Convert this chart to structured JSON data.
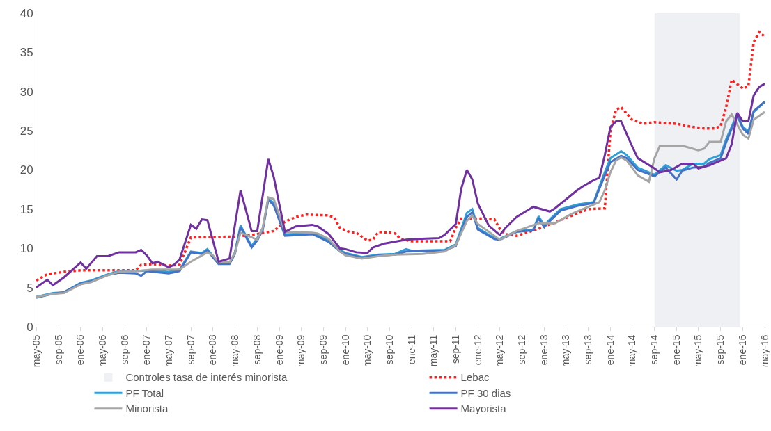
{
  "chart_data": {
    "type": "line",
    "xlim": [
      "2005-05",
      "2016-05"
    ],
    "ylim": [
      0,
      40
    ],
    "yticks": [
      0,
      5,
      10,
      15,
      20,
      25,
      30,
      35,
      40
    ],
    "grid": false,
    "legend": "bottom",
    "marker": "none",
    "xticks": [
      {
        "value": "2005-05",
        "label": "may-05"
      },
      {
        "value": "2005-09",
        "label": "sep-05"
      },
      {
        "value": "2006-01",
        "label": "ene-06"
      },
      {
        "value": "2006-05",
        "label": "may-06"
      },
      {
        "value": "2006-09",
        "label": "sep-06"
      },
      {
        "value": "2007-01",
        "label": "ene-07"
      },
      {
        "value": "2007-05",
        "label": "may-07"
      },
      {
        "value": "2007-09",
        "label": "sep-07"
      },
      {
        "value": "2008-01",
        "label": "ene-08"
      },
      {
        "value": "2008-05",
        "label": "may-08"
      },
      {
        "value": "2008-09",
        "label": "sep-08"
      },
      {
        "value": "2009-01",
        "label": "ene-09"
      },
      {
        "value": "2009-05",
        "label": "may-09"
      },
      {
        "value": "2009-09",
        "label": "sep-09"
      },
      {
        "value": "2010-01",
        "label": "ene-10"
      },
      {
        "value": "2010-05",
        "label": "may-10"
      },
      {
        "value": "2010-09",
        "label": "sep-10"
      },
      {
        "value": "2011-01",
        "label": "ene-11"
      },
      {
        "value": "2011-05",
        "label": "may-11"
      },
      {
        "value": "2011-09",
        "label": "sep-11"
      },
      {
        "value": "2012-01",
        "label": "ene-12"
      },
      {
        "value": "2012-05",
        "label": "may-12"
      },
      {
        "value": "2012-09",
        "label": "sep-12"
      },
      {
        "value": "2013-01",
        "label": "ene-13"
      },
      {
        "value": "2013-05",
        "label": "may-13"
      },
      {
        "value": "2013-09",
        "label": "sep-13"
      },
      {
        "value": "2014-01",
        "label": "ene-14"
      },
      {
        "value": "2014-05",
        "label": "may-14"
      },
      {
        "value": "2014-09",
        "label": "sep-14"
      },
      {
        "value": "2015-01",
        "label": "ene-15"
      },
      {
        "value": "2015-05",
        "label": "may-15"
      },
      {
        "value": "2015-09",
        "label": "sep-15"
      },
      {
        "value": "2016-01",
        "label": "ene-16"
      },
      {
        "value": "2016-05",
        "label": "may-16"
      }
    ],
    "bands": [
      {
        "axis": "x",
        "from": "2014-09",
        "to": "2015-12-15",
        "label": "Controles tasa de interés minorista",
        "color": "#eef0f3"
      }
    ],
    "series": [
      {
        "name": "Lebac",
        "color": "#ff2020",
        "line_style": "dotted",
        "x": [
          "2005-05",
          "2005-07",
          "2005-10",
          "2006-01",
          "2006-05",
          "2006-11",
          "2006-12",
          "2007-02",
          "2007-05",
          "2007-07",
          "2007-09",
          "2008-05",
          "2008-08",
          "2008-12",
          "2009-02",
          "2009-04",
          "2009-06",
          "2009-10",
          "2009-11",
          "2009-12",
          "2010-02",
          "2010-03",
          "2010-05",
          "2010-06",
          "2010-07",
          "2010-09",
          "2010-10",
          "2010-11",
          "2011-01",
          "2011-08",
          "2011-09",
          "2011-10",
          "2012-02",
          "2012-04",
          "2012-05",
          "2012-06",
          "2012-08",
          "2012-12",
          "2013-09",
          "2013-12",
          "2014-01",
          "2014-02",
          "2014-03",
          "2014-05",
          "2014-07",
          "2014-09",
          "2015-01",
          "2015-03",
          "2015-06",
          "2015-08",
          "2015-09",
          "2015-10",
          "2015-11",
          "2016-01",
          "2016-02",
          "2016-03",
          "2016-04",
          "2016-05"
        ],
        "values": [
          5.9,
          6.7,
          7.0,
          7.2,
          7.2,
          7.2,
          7.9,
          8.0,
          7.8,
          7.9,
          11.4,
          11.5,
          11.7,
          12.2,
          13.4,
          14.0,
          14.3,
          14.2,
          13.9,
          12.6,
          12.0,
          12.0,
          11.0,
          11.1,
          12.1,
          12.0,
          11.9,
          11.2,
          10.9,
          10.9,
          12.6,
          13.8,
          13.8,
          13.7,
          12.5,
          11.8,
          11.6,
          12.5,
          15.0,
          15.1,
          25.0,
          27.7,
          28.0,
          26.4,
          25.9,
          26.1,
          25.9,
          25.6,
          25.3,
          25.3,
          25.6,
          28.0,
          31.5,
          30.4,
          30.7,
          36.3,
          37.6,
          37.0
        ]
      },
      {
        "name": "PF Total",
        "color": "#2e9fd9",
        "x": [
          "2005-05",
          "2005-08",
          "2005-10",
          "2006-01",
          "2006-03",
          "2006-06",
          "2006-08",
          "2006-11",
          "2007-02",
          "2007-05",
          "2007-07",
          "2007-09",
          "2007-11",
          "2007-12",
          "2008-02",
          "2008-04",
          "2008-05",
          "2008-06",
          "2008-08",
          "2008-09",
          "2008-10",
          "2008-11",
          "2008-12",
          "2009-02",
          "2009-07",
          "2009-08",
          "2009-10",
          "2009-12",
          "2010-01",
          "2010-04",
          "2010-07",
          "2010-10",
          "2010-12",
          "2011-01",
          "2011-07",
          "2011-09",
          "2011-11",
          "2011-12",
          "2012-01",
          "2012-04",
          "2012-05",
          "2012-08",
          "2012-11",
          "2012-12",
          "2013-01",
          "2013-02",
          "2013-04",
          "2013-07",
          "2013-10",
          "2013-11",
          "2013-12",
          "2014-01",
          "2014-03",
          "2014-04",
          "2014-06",
          "2014-09",
          "2014-11",
          "2015-01",
          "2015-02",
          "2015-04",
          "2015-06",
          "2015-07",
          "2015-09",
          "2015-10",
          "2015-12",
          "2016-01",
          "2016-02",
          "2016-03",
          "2016-05"
        ],
        "values": [
          3.8,
          4.3,
          4.4,
          5.6,
          5.9,
          6.7,
          7.1,
          7.1,
          7.2,
          7.0,
          7.3,
          9.6,
          9.4,
          9.9,
          8.1,
          8.1,
          9.5,
          12.9,
          10.3,
          11.3,
          12.5,
          16.3,
          15.8,
          11.8,
          11.9,
          11.7,
          11.0,
          9.8,
          9.4,
          8.9,
          9.2,
          9.3,
          9.9,
          9.7,
          9.8,
          10.5,
          14.5,
          15.0,
          12.6,
          11.3,
          11.2,
          12.2,
          12.4,
          14.1,
          12.9,
          13.7,
          15.0,
          15.6,
          15.9,
          17.9,
          19.7,
          21.5,
          22.4,
          21.9,
          20.3,
          19.4,
          20.6,
          19.9,
          20.0,
          20.8,
          20.8,
          21.4,
          21.9,
          23.9,
          27.1,
          25.5,
          24.9,
          27.4,
          28.7
        ]
      },
      {
        "name": "PF 30 dias",
        "color": "#4472c4",
        "x": [
          "2005-05",
          "2005-08",
          "2005-10",
          "2006-01",
          "2006-03",
          "2006-06",
          "2006-08",
          "2006-11",
          "2006-12",
          "2007-01",
          "2007-05",
          "2007-07",
          "2007-09",
          "2007-11",
          "2007-12",
          "2008-02",
          "2008-04",
          "2008-05",
          "2008-06",
          "2008-08",
          "2008-09",
          "2008-10",
          "2008-11",
          "2008-12",
          "2009-02",
          "2009-07",
          "2009-08",
          "2009-10",
          "2009-12",
          "2010-01",
          "2010-04",
          "2010-07",
          "2010-10",
          "2010-12",
          "2011-07",
          "2011-09",
          "2011-11",
          "2011-12",
          "2012-01",
          "2012-04",
          "2012-05",
          "2012-08",
          "2012-11",
          "2012-12",
          "2013-01",
          "2013-02",
          "2013-04",
          "2013-07",
          "2013-10",
          "2013-11",
          "2013-12",
          "2014-01",
          "2014-03",
          "2014-04",
          "2014-06",
          "2014-09",
          "2014-11",
          "2015-01",
          "2015-02",
          "2015-04",
          "2015-06",
          "2015-07",
          "2015-09",
          "2015-10",
          "2015-12",
          "2016-01",
          "2016-02",
          "2016-03",
          "2016-05"
        ],
        "values": [
          3.7,
          4.2,
          4.4,
          5.5,
          5.8,
          6.6,
          6.9,
          6.8,
          6.5,
          7.1,
          6.8,
          7.1,
          9.5,
          9.3,
          9.7,
          8.0,
          8.0,
          9.3,
          12.7,
          10.1,
          11.0,
          12.3,
          16.2,
          15.5,
          11.6,
          11.8,
          11.5,
          10.8,
          9.6,
          9.3,
          8.8,
          9.1,
          9.2,
          9.6,
          9.7,
          10.3,
          14.0,
          14.6,
          12.4,
          11.2,
          11.1,
          12.1,
          12.3,
          13.8,
          12.7,
          13.5,
          14.8,
          15.4,
          15.8,
          17.6,
          19.3,
          21.0,
          21.8,
          21.5,
          20.0,
          19.2,
          20.3,
          18.8,
          19.9,
          20.3,
          20.4,
          20.9,
          21.5,
          23.5,
          27.0,
          25.3,
          24.6,
          27.5,
          28.7
        ]
      },
      {
        "name": "Minorista",
        "color": "#a5a5a5",
        "x": [
          "2005-05",
          "2005-08",
          "2005-10",
          "2006-01",
          "2006-03",
          "2006-06",
          "2006-08",
          "2006-11",
          "2007-02",
          "2007-07",
          "2007-09",
          "2007-12",
          "2008-01",
          "2008-02",
          "2008-04",
          "2008-05",
          "2008-06",
          "2008-08",
          "2008-09",
          "2008-10",
          "2008-11",
          "2008-12",
          "2009-02",
          "2009-07",
          "2009-08",
          "2009-10",
          "2009-12",
          "2010-01",
          "2010-04",
          "2010-07",
          "2010-10",
          "2011-03",
          "2011-07",
          "2011-09",
          "2011-11",
          "2011-12",
          "2012-01",
          "2012-05",
          "2012-08",
          "2012-12",
          "2013-03",
          "2013-06",
          "2013-08",
          "2013-11",
          "2013-12",
          "2014-01",
          "2014-02",
          "2014-03",
          "2014-04",
          "2014-06",
          "2014-08",
          "2014-09",
          "2014-10",
          "2015-02",
          "2015-05",
          "2015-06",
          "2015-07",
          "2015-09",
          "2015-10",
          "2015-11",
          "2016-01",
          "2016-02",
          "2016-03",
          "2016-05"
        ],
        "values": [
          3.8,
          4.2,
          4.3,
          5.4,
          5.7,
          6.6,
          7.0,
          7.1,
          7.3,
          7.3,
          8.3,
          9.5,
          9.1,
          8.2,
          8.2,
          9.4,
          12.0,
          11.4,
          11.1,
          12.6,
          16.5,
          16.3,
          12.1,
          12.0,
          11.9,
          11.2,
          9.6,
          9.1,
          8.7,
          9.0,
          9.2,
          9.3,
          9.6,
          10.4,
          13.5,
          14.2,
          13.1,
          11.1,
          12.2,
          13.2,
          13.2,
          14.4,
          15.0,
          15.9,
          17.4,
          19.7,
          21.2,
          21.6,
          21.2,
          19.3,
          18.5,
          21.5,
          23.1,
          23.1,
          22.5,
          22.7,
          23.6,
          23.6,
          26.2,
          27.1,
          24.5,
          24.0,
          26.4,
          27.4
        ]
      },
      {
        "name": "Mayorista",
        "color": "#7030a0",
        "x": [
          "2005-05",
          "2005-07",
          "2005-08",
          "2005-10",
          "2006-01",
          "2006-02",
          "2006-04",
          "2006-06",
          "2006-08",
          "2006-11",
          "2006-12",
          "2007-01",
          "2007-02",
          "2007-03",
          "2007-05",
          "2007-06",
          "2007-07",
          "2007-09",
          "2007-10",
          "2007-11",
          "2007-12",
          "2008-02",
          "2008-04",
          "2008-06",
          "2008-08",
          "2008-09",
          "2008-11",
          "2008-12",
          "2009-02",
          "2009-04",
          "2009-07",
          "2009-08",
          "2009-10",
          "2009-12",
          "2010-01",
          "2010-03",
          "2010-05",
          "2010-06",
          "2010-08",
          "2010-12",
          "2011-02",
          "2011-06",
          "2011-07",
          "2011-09",
          "2011-10",
          "2011-11",
          "2011-12",
          "2012-01",
          "2012-03",
          "2012-05",
          "2012-06",
          "2012-08",
          "2012-11",
          "2013-02",
          "2013-03",
          "2013-07",
          "2013-08",
          "2013-10",
          "2013-11",
          "2013-12",
          "2014-01",
          "2014-02",
          "2014-03",
          "2014-05",
          "2014-06",
          "2014-09",
          "2014-10",
          "2014-12",
          "2015-02",
          "2015-04",
          "2015-05",
          "2015-07",
          "2015-10",
          "2015-11",
          "2015-12",
          "2016-01",
          "2016-02",
          "2016-03",
          "2016-04",
          "2016-05"
        ],
        "values": [
          5.0,
          6.0,
          5.3,
          6.3,
          8.2,
          7.4,
          9.0,
          9.0,
          9.5,
          9.5,
          9.8,
          9.1,
          8.1,
          8.3,
          7.6,
          7.9,
          8.6,
          13.0,
          12.5,
          13.7,
          13.6,
          8.3,
          8.7,
          17.4,
          12.2,
          12.2,
          21.4,
          19.1,
          12.1,
          12.8,
          13.0,
          12.8,
          11.8,
          10.0,
          9.9,
          9.5,
          9.4,
          10.1,
          10.6,
          11.1,
          11.2,
          11.3,
          11.7,
          13.1,
          17.6,
          20.0,
          18.8,
          15.7,
          12.9,
          11.7,
          12.6,
          14.0,
          15.3,
          14.7,
          15.1,
          17.4,
          17.9,
          18.7,
          19.0,
          21.9,
          25.5,
          26.2,
          26.2,
          23.0,
          21.5,
          20.2,
          19.7,
          20.0,
          20.8,
          20.8,
          20.2,
          20.6,
          21.5,
          23.3,
          27.3,
          26.2,
          26.2,
          29.5,
          30.6,
          31.0
        ]
      }
    ]
  }
}
